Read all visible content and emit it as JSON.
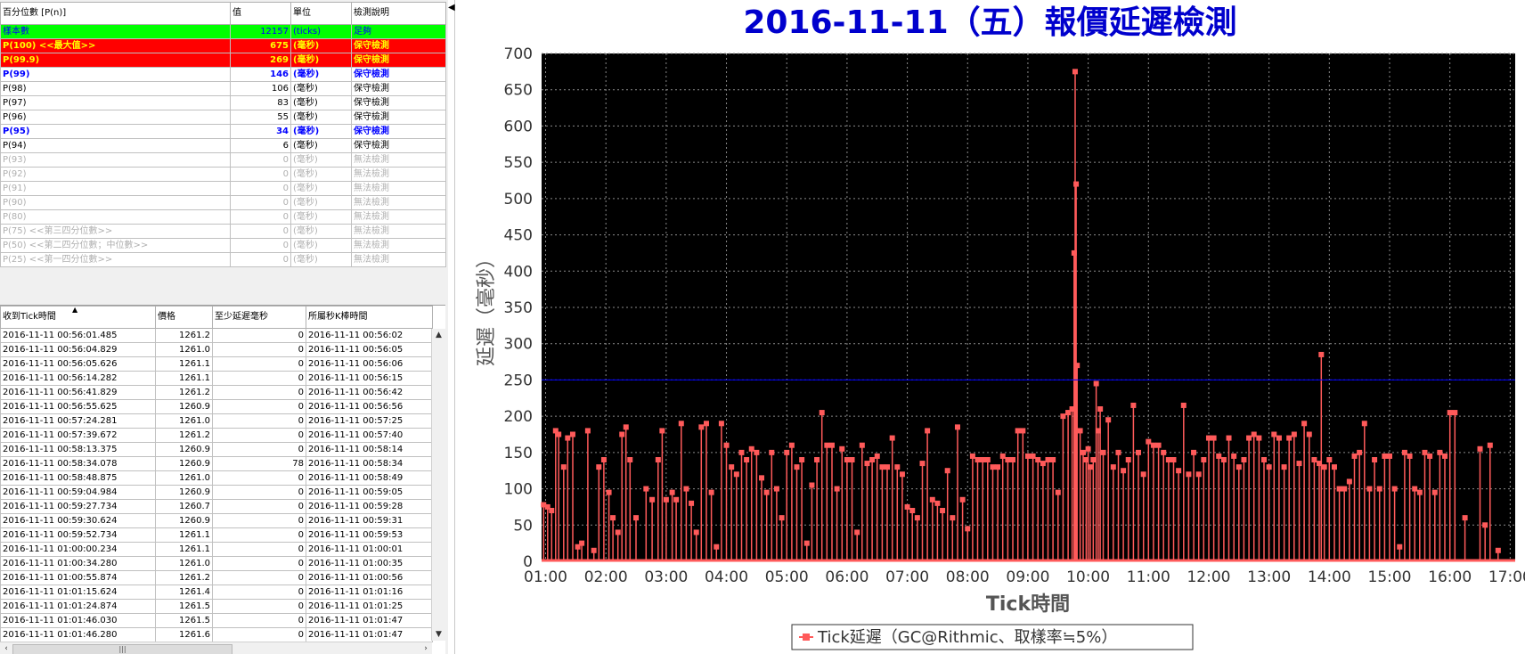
{
  "percentile_table": {
    "headers": [
      "百分位數 [P(n)]",
      "值",
      "單位",
      "檢測說明"
    ],
    "rows": [
      {
        "label": "樣本數",
        "value": "12157",
        "unit": "(ticks)",
        "desc": "足夠",
        "style": "green"
      },
      {
        "label": "P(100)  <<最大值>>",
        "value": "675",
        "unit": "(毫秒)",
        "desc": "保守檢測",
        "style": "red"
      },
      {
        "label": "P(99.9)",
        "value": "269",
        "unit": "(毫秒)",
        "desc": "保守檢測",
        "style": "red"
      },
      {
        "label": "P(99)",
        "value": "146",
        "unit": "(毫秒)",
        "desc": "保守檢測",
        "style": "blue"
      },
      {
        "label": "P(98)",
        "value": "106",
        "unit": "(毫秒)",
        "desc": "保守檢測",
        "style": "black"
      },
      {
        "label": "P(97)",
        "value": "83",
        "unit": "(毫秒)",
        "desc": "保守檢測",
        "style": "black"
      },
      {
        "label": "P(96)",
        "value": "55",
        "unit": "(毫秒)",
        "desc": "保守檢測",
        "style": "black"
      },
      {
        "label": "P(95)",
        "value": "34",
        "unit": "(毫秒)",
        "desc": "保守檢測",
        "style": "blue"
      },
      {
        "label": "P(94)",
        "value": "6",
        "unit": "(毫秒)",
        "desc": "保守檢測",
        "style": "black"
      },
      {
        "label": "P(93)",
        "value": "0",
        "unit": "(毫秒)",
        "desc": "無法檢測",
        "style": "gray"
      },
      {
        "label": "P(92)",
        "value": "0",
        "unit": "(毫秒)",
        "desc": "無法檢測",
        "style": "gray"
      },
      {
        "label": "P(91)",
        "value": "0",
        "unit": "(毫秒)",
        "desc": "無法檢測",
        "style": "gray"
      },
      {
        "label": "P(90)",
        "value": "0",
        "unit": "(毫秒)",
        "desc": "無法檢測",
        "style": "gray"
      },
      {
        "label": "P(80)",
        "value": "0",
        "unit": "(毫秒)",
        "desc": "無法檢測",
        "style": "gray"
      },
      {
        "label": "P(75)  <<第三四分位數>>",
        "value": "0",
        "unit": "(毫秒)",
        "desc": "無法檢測",
        "style": "gray"
      },
      {
        "label": "P(50)  <<第二四分位數；中位數>>",
        "value": "0",
        "unit": "(毫秒)",
        "desc": "無法檢測",
        "style": "gray"
      },
      {
        "label": "P(25)  <<第一四分位數>>",
        "value": "0",
        "unit": "(毫秒)",
        "desc": "無法檢測",
        "style": "gray"
      }
    ]
  },
  "tick_table": {
    "headers": [
      "收到Tick時間",
      "價格",
      "至少延遲毫秒",
      "所屬秒K棒時間"
    ],
    "sort_arrow": "▲",
    "rows": [
      [
        "2016-11-11 00:56:01.485",
        "1261.2",
        "0",
        "2016-11-11 00:56:02"
      ],
      [
        "2016-11-11 00:56:04.829",
        "1261.0",
        "0",
        "2016-11-11 00:56:05"
      ],
      [
        "2016-11-11 00:56:05.626",
        "1261.1",
        "0",
        "2016-11-11 00:56:06"
      ],
      [
        "2016-11-11 00:56:14.282",
        "1261.1",
        "0",
        "2016-11-11 00:56:15"
      ],
      [
        "2016-11-11 00:56:41.829",
        "1261.2",
        "0",
        "2016-11-11 00:56:42"
      ],
      [
        "2016-11-11 00:56:55.625",
        "1260.9",
        "0",
        "2016-11-11 00:56:56"
      ],
      [
        "2016-11-11 00:57:24.281",
        "1261.0",
        "0",
        "2016-11-11 00:57:25"
      ],
      [
        "2016-11-11 00:57:39.672",
        "1261.2",
        "0",
        "2016-11-11 00:57:40"
      ],
      [
        "2016-11-11 00:58:13.375",
        "1260.9",
        "0",
        "2016-11-11 00:58:14"
      ],
      [
        "2016-11-11 00:58:34.078",
        "1260.9",
        "78",
        "2016-11-11 00:58:34"
      ],
      [
        "2016-11-11 00:58:48.875",
        "1261.0",
        "0",
        "2016-11-11 00:58:49"
      ],
      [
        "2016-11-11 00:59:04.984",
        "1260.9",
        "0",
        "2016-11-11 00:59:05"
      ],
      [
        "2016-11-11 00:59:27.734",
        "1260.7",
        "0",
        "2016-11-11 00:59:28"
      ],
      [
        "2016-11-11 00:59:30.624",
        "1260.9",
        "0",
        "2016-11-11 00:59:31"
      ],
      [
        "2016-11-11 00:59:52.734",
        "1261.1",
        "0",
        "2016-11-11 00:59:53"
      ],
      [
        "2016-11-11 01:00:00.234",
        "1261.1",
        "0",
        "2016-11-11 01:00:01"
      ],
      [
        "2016-11-11 01:00:34.280",
        "1261.0",
        "0",
        "2016-11-11 01:00:35"
      ],
      [
        "2016-11-11 01:00:55.874",
        "1261.2",
        "0",
        "2016-11-11 01:00:56"
      ],
      [
        "2016-11-11 01:01:15.624",
        "1261.4",
        "0",
        "2016-11-11 01:01:16"
      ],
      [
        "2016-11-11 01:01:24.874",
        "1261.5",
        "0",
        "2016-11-11 01:01:25"
      ],
      [
        "2016-11-11 01:01:46.030",
        "1261.5",
        "0",
        "2016-11-11 01:01:47"
      ],
      [
        "2016-11-11 01:01:46.280",
        "1261.6",
        "0",
        "2016-11-11 01:01:47"
      ]
    ]
  },
  "scrollbars": {
    "up": "▲",
    "down": "▼",
    "left": "‹",
    "right": "›",
    "thumb_grip": "|||"
  },
  "splitter": {
    "arrow": "◀"
  },
  "chart_data": {
    "type": "line",
    "title": "2016-11-11（五）報價延遲檢測",
    "xlabel": "Tick時間",
    "ylabel": "延遲（毫秒）",
    "xlim": [
      "00:56",
      "17:05"
    ],
    "ylim": [
      0,
      700
    ],
    "x_ticks": [
      "01:00",
      "02:00",
      "03:00",
      "04:00",
      "05:00",
      "06:00",
      "07:00",
      "08:00",
      "09:00",
      "10:00",
      "11:00",
      "12:00",
      "13:00",
      "14:00",
      "15:00",
      "16:00",
      "17:00"
    ],
    "y_ticks": [
      0,
      50,
      100,
      150,
      200,
      250,
      300,
      350,
      400,
      450,
      500,
      550,
      600,
      650,
      700
    ],
    "threshold": {
      "value": 250,
      "color": "#0000ff"
    },
    "background": "#000000",
    "grid": true,
    "series": [
      {
        "name": "Tick延遲（GC@Rithmic、取樣率≒5%）",
        "color": "#ff5a5a",
        "points": [
          [
            "00:58",
            78
          ],
          [
            "01:02",
            75
          ],
          [
            "01:06",
            70
          ],
          [
            "01:10",
            180
          ],
          [
            "01:13",
            175
          ],
          [
            "01:18",
            130
          ],
          [
            "01:22",
            170
          ],
          [
            "01:27",
            175
          ],
          [
            "01:32",
            20
          ],
          [
            "01:36",
            25
          ],
          [
            "01:42",
            180
          ],
          [
            "01:48",
            15
          ],
          [
            "01:53",
            130
          ],
          [
            "01:58",
            140
          ],
          [
            "02:03",
            95
          ],
          [
            "02:07",
            60
          ],
          [
            "02:12",
            40
          ],
          [
            "02:16",
            175
          ],
          [
            "02:20",
            185
          ],
          [
            "02:24",
            140
          ],
          [
            "02:30",
            60
          ],
          [
            "02:40",
            100
          ],
          [
            "02:46",
            85
          ],
          [
            "02:52",
            140
          ],
          [
            "02:56",
            180
          ],
          [
            "03:00",
            85
          ],
          [
            "03:06",
            95
          ],
          [
            "03:10",
            85
          ],
          [
            "03:15",
            190
          ],
          [
            "03:20",
            100
          ],
          [
            "03:25",
            80
          ],
          [
            "03:30",
            40
          ],
          [
            "03:35",
            185
          ],
          [
            "03:40",
            190
          ],
          [
            "03:45",
            95
          ],
          [
            "03:50",
            20
          ],
          [
            "03:55",
            190
          ],
          [
            "04:00",
            160
          ],
          [
            "04:05",
            130
          ],
          [
            "04:10",
            120
          ],
          [
            "04:15",
            150
          ],
          [
            "04:20",
            140
          ],
          [
            "04:25",
            155
          ],
          [
            "04:30",
            150
          ],
          [
            "04:35",
            115
          ],
          [
            "04:40",
            95
          ],
          [
            "04:45",
            150
          ],
          [
            "04:50",
            100
          ],
          [
            "04:55",
            60
          ],
          [
            "05:00",
            150
          ],
          [
            "05:05",
            160
          ],
          [
            "05:10",
            130
          ],
          [
            "05:15",
            140
          ],
          [
            "05:20",
            25
          ],
          [
            "05:25",
            105
          ],
          [
            "05:30",
            140
          ],
          [
            "05:35",
            205
          ],
          [
            "05:40",
            160
          ],
          [
            "05:45",
            160
          ],
          [
            "05:50",
            100
          ],
          [
            "05:55",
            155
          ],
          [
            "06:00",
            140
          ],
          [
            "06:05",
            140
          ],
          [
            "06:10",
            40
          ],
          [
            "06:15",
            160
          ],
          [
            "06:20",
            135
          ],
          [
            "06:25",
            140
          ],
          [
            "06:30",
            145
          ],
          [
            "06:35",
            130
          ],
          [
            "06:40",
            130
          ],
          [
            "06:45",
            170
          ],
          [
            "06:50",
            130
          ],
          [
            "06:55",
            120
          ],
          [
            "07:00",
            75
          ],
          [
            "07:05",
            70
          ],
          [
            "07:10",
            60
          ],
          [
            "07:15",
            135
          ],
          [
            "07:20",
            180
          ],
          [
            "07:25",
            85
          ],
          [
            "07:30",
            80
          ],
          [
            "07:35",
            70
          ],
          [
            "07:40",
            125
          ],
          [
            "07:45",
            60
          ],
          [
            "07:50",
            185
          ],
          [
            "07:55",
            85
          ],
          [
            "08:00",
            45
          ],
          [
            "08:05",
            145
          ],
          [
            "08:10",
            140
          ],
          [
            "08:15",
            140
          ],
          [
            "08:20",
            140
          ],
          [
            "08:25",
            130
          ],
          [
            "08:30",
            130
          ],
          [
            "08:35",
            145
          ],
          [
            "08:40",
            140
          ],
          [
            "08:45",
            140
          ],
          [
            "08:50",
            180
          ],
          [
            "08:55",
            180
          ],
          [
            "09:00",
            145
          ],
          [
            "09:05",
            145
          ],
          [
            "09:10",
            140
          ],
          [
            "09:15",
            135
          ],
          [
            "09:20",
            140
          ],
          [
            "09:25",
            140
          ],
          [
            "09:30",
            95
          ],
          [
            "09:35",
            200
          ],
          [
            "09:40",
            205
          ],
          [
            "09:44",
            210
          ],
          [
            "09:46",
            425
          ],
          [
            "09:47",
            675
          ],
          [
            "09:48",
            520
          ],
          [
            "09:49",
            270
          ],
          [
            "09:52",
            180
          ],
          [
            "09:55",
            150
          ],
          [
            "09:58",
            140
          ],
          [
            "10:00",
            155
          ],
          [
            "10:02",
            130
          ],
          [
            "10:05",
            140
          ],
          [
            "10:08",
            245
          ],
          [
            "10:10",
            180
          ],
          [
            "10:12",
            210
          ],
          [
            "10:15",
            150
          ],
          [
            "10:20",
            195
          ],
          [
            "10:25",
            130
          ],
          [
            "10:30",
            150
          ],
          [
            "10:35",
            125
          ],
          [
            "10:40",
            140
          ],
          [
            "10:45",
            215
          ],
          [
            "10:50",
            150
          ],
          [
            "10:55",
            120
          ],
          [
            "11:00",
            165
          ],
          [
            "11:05",
            160
          ],
          [
            "11:10",
            160
          ],
          [
            "11:15",
            150
          ],
          [
            "11:20",
            140
          ],
          [
            "11:25",
            140
          ],
          [
            "11:30",
            125
          ],
          [
            "11:35",
            215
          ],
          [
            "11:40",
            120
          ],
          [
            "11:45",
            150
          ],
          [
            "11:50",
            120
          ],
          [
            "11:55",
            140
          ],
          [
            "12:00",
            170
          ],
          [
            "12:05",
            170
          ],
          [
            "12:10",
            145
          ],
          [
            "12:15",
            140
          ],
          [
            "12:20",
            170
          ],
          [
            "12:25",
            145
          ],
          [
            "12:30",
            130
          ],
          [
            "12:35",
            140
          ],
          [
            "12:40",
            170
          ],
          [
            "12:45",
            175
          ],
          [
            "12:50",
            170
          ],
          [
            "12:55",
            140
          ],
          [
            "13:00",
            130
          ],
          [
            "13:05",
            175
          ],
          [
            "13:10",
            170
          ],
          [
            "13:15",
            130
          ],
          [
            "13:20",
            170
          ],
          [
            "13:25",
            175
          ],
          [
            "13:30",
            135
          ],
          [
            "13:35",
            190
          ],
          [
            "13:40",
            175
          ],
          [
            "13:45",
            140
          ],
          [
            "13:50",
            135
          ],
          [
            "13:52",
            285
          ],
          [
            "13:55",
            130
          ],
          [
            "14:00",
            140
          ],
          [
            "14:05",
            130
          ],
          [
            "14:10",
            100
          ],
          [
            "14:15",
            100
          ],
          [
            "14:20",
            110
          ],
          [
            "14:25",
            145
          ],
          [
            "14:30",
            150
          ],
          [
            "14:35",
            190
          ],
          [
            "14:40",
            100
          ],
          [
            "14:45",
            140
          ],
          [
            "14:50",
            100
          ],
          [
            "14:55",
            145
          ],
          [
            "15:00",
            145
          ],
          [
            "15:05",
            100
          ],
          [
            "15:10",
            20
          ],
          [
            "15:15",
            150
          ],
          [
            "15:20",
            145
          ],
          [
            "15:25",
            100
          ],
          [
            "15:30",
            95
          ],
          [
            "15:35",
            150
          ],
          [
            "15:40",
            145
          ],
          [
            "15:45",
            95
          ],
          [
            "15:50",
            150
          ],
          [
            "15:55",
            145
          ],
          [
            "16:00",
            205
          ],
          [
            "16:05",
            205
          ],
          [
            "16:15",
            60
          ],
          [
            "16:30",
            155
          ],
          [
            "16:35",
            50
          ],
          [
            "16:40",
            160
          ],
          [
            "16:48",
            15
          ]
        ]
      }
    ]
  }
}
